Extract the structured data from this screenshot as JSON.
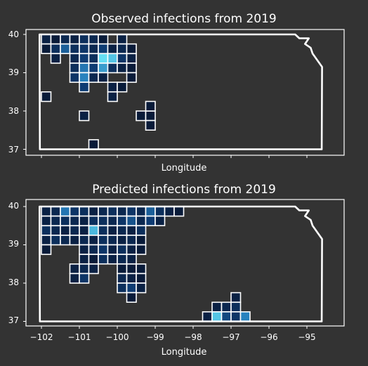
{
  "chart_data": [
    {
      "type": "heatmap",
      "title": "Observed infections from 2019",
      "xlabel": "Longitude",
      "ylabel": "",
      "xlim": [
        -102.3,
        -94.3
      ],
      "ylim": [
        36.85,
        40.15
      ],
      "xticks": [],
      "yticks": [
        "37",
        "38",
        "39",
        "40"
      ],
      "grid": false,
      "legend": "none",
      "cell_size_deg": 0.25,
      "cells": [
        [
          -101.875,
          39.875,
          0.1
        ],
        [
          -101.625,
          39.875,
          0.05
        ],
        [
          -101.375,
          39.875,
          0.15
        ],
        [
          -101.125,
          39.875,
          0.1
        ],
        [
          -100.875,
          39.875,
          0.2
        ],
        [
          -100.625,
          39.875,
          0.15
        ],
        [
          -100.375,
          39.875,
          0.05
        ],
        [
          -99.875,
          39.875,
          0.1
        ],
        [
          -101.875,
          39.625,
          0.05
        ],
        [
          -101.625,
          39.625,
          0.2
        ],
        [
          -101.375,
          39.625,
          0.45
        ],
        [
          -101.125,
          39.625,
          0.2
        ],
        [
          -100.875,
          39.625,
          0.25
        ],
        [
          -100.625,
          39.625,
          0.15
        ],
        [
          -100.375,
          39.625,
          0.3
        ],
        [
          -100.125,
          39.625,
          0.1
        ],
        [
          -99.875,
          39.625,
          0.15
        ],
        [
          -99.625,
          39.625,
          0.05
        ],
        [
          -101.625,
          39.375,
          0.1
        ],
        [
          -101.125,
          39.375,
          0.15
        ],
        [
          -100.875,
          39.375,
          0.3
        ],
        [
          -100.625,
          39.375,
          0.2
        ],
        [
          -100.375,
          39.375,
          0.95
        ],
        [
          -100.125,
          39.375,
          0.85
        ],
        [
          -99.875,
          39.375,
          0.25
        ],
        [
          -99.625,
          39.375,
          0.1
        ],
        [
          -101.125,
          39.125,
          0.2
        ],
        [
          -100.875,
          39.125,
          0.55
        ],
        [
          -100.625,
          39.125,
          0.3
        ],
        [
          -100.375,
          39.125,
          0.7
        ],
        [
          -100.125,
          39.125,
          0.2
        ],
        [
          -99.875,
          39.125,
          0.1
        ],
        [
          -99.625,
          39.125,
          0.05
        ],
        [
          -101.125,
          38.875,
          0.25
        ],
        [
          -100.875,
          38.875,
          0.6
        ],
        [
          -100.625,
          38.875,
          0.15
        ],
        [
          -100.375,
          38.875,
          0.1
        ],
        [
          -99.625,
          38.875,
          0.05
        ],
        [
          -100.875,
          38.625,
          0.3
        ],
        [
          -100.125,
          38.625,
          0.1
        ],
        [
          -99.875,
          38.625,
          0.05
        ],
        [
          -101.875,
          38.375,
          0.05
        ],
        [
          -100.125,
          38.375,
          0.1
        ],
        [
          -100.875,
          37.875,
          0.1
        ],
        [
          -99.375,
          37.875,
          0.05
        ],
        [
          -99.125,
          37.875,
          0.05
        ],
        [
          -99.125,
          38.125,
          0.05
        ],
        [
          -99.125,
          37.625,
          0.05
        ],
        [
          -100.625,
          37.125,
          0.05
        ]
      ]
    },
    {
      "type": "heatmap",
      "title": "Predicted infections from 2019",
      "xlabel": "Longitude",
      "ylabel": "",
      "xlim": [
        -102.3,
        -94.3
      ],
      "ylim": [
        36.85,
        40.15
      ],
      "xticks": [
        "−102",
        "−101",
        "−100",
        "−99",
        "−98",
        "−97",
        "−96",
        "−95"
      ],
      "yticks": [
        "37",
        "38",
        "39",
        "40"
      ],
      "grid": false,
      "legend": "none",
      "cell_size_deg": 0.25,
      "cells": [
        [
          -101.875,
          39.875,
          0.1
        ],
        [
          -101.625,
          39.875,
          0.15
        ],
        [
          -101.375,
          39.875,
          0.55
        ],
        [
          -101.125,
          39.875,
          0.25
        ],
        [
          -100.875,
          39.875,
          0.2
        ],
        [
          -100.625,
          39.875,
          0.1
        ],
        [
          -100.375,
          39.875,
          0.15
        ],
        [
          -100.125,
          39.875,
          0.2
        ],
        [
          -99.875,
          39.875,
          0.15
        ],
        [
          -99.625,
          39.875,
          0.25
        ],
        [
          -99.375,
          39.875,
          0.15
        ],
        [
          -99.125,
          39.875,
          0.45
        ],
        [
          -98.875,
          39.875,
          0.2
        ],
        [
          -98.625,
          39.875,
          0.1
        ],
        [
          -98.375,
          39.875,
          0.05
        ],
        [
          -101.875,
          39.625,
          0.1
        ],
        [
          -101.625,
          39.625,
          0.15
        ],
        [
          -101.375,
          39.625,
          0.2
        ],
        [
          -101.125,
          39.625,
          0.15
        ],
        [
          -100.875,
          39.625,
          0.1
        ],
        [
          -100.625,
          39.625,
          0.2
        ],
        [
          -100.375,
          39.625,
          0.2
        ],
        [
          -100.125,
          39.625,
          0.15
        ],
        [
          -99.875,
          39.625,
          0.25
        ],
        [
          -99.625,
          39.625,
          0.4
        ],
        [
          -99.375,
          39.625,
          0.15
        ],
        [
          -99.125,
          39.625,
          0.3
        ],
        [
          -98.875,
          39.625,
          0.1
        ],
        [
          -101.875,
          39.375,
          0.2
        ],
        [
          -101.625,
          39.375,
          0.15
        ],
        [
          -101.375,
          39.375,
          0.1
        ],
        [
          -101.125,
          39.375,
          0.15
        ],
        [
          -100.875,
          39.375,
          0.1
        ],
        [
          -100.625,
          39.375,
          0.8
        ],
        [
          -100.375,
          39.375,
          0.2
        ],
        [
          -100.125,
          39.375,
          0.1
        ],
        [
          -99.875,
          39.375,
          0.15
        ],
        [
          -99.625,
          39.375,
          0.1
        ],
        [
          -99.375,
          39.375,
          0.2
        ],
        [
          -101.875,
          39.125,
          0.1
        ],
        [
          -101.625,
          39.125,
          0.2
        ],
        [
          -101.375,
          39.125,
          0.15
        ],
        [
          -101.125,
          39.125,
          0.1
        ],
        [
          -100.875,
          39.125,
          0.15
        ],
        [
          -100.625,
          39.125,
          0.1
        ],
        [
          -100.375,
          39.125,
          0.2
        ],
        [
          -100.125,
          39.125,
          0.15
        ],
        [
          -99.875,
          39.125,
          0.1
        ],
        [
          -99.625,
          39.125,
          0.15
        ],
        [
          -99.375,
          39.125,
          0.05
        ],
        [
          -101.875,
          38.875,
          0.05
        ],
        [
          -100.875,
          38.875,
          0.1
        ],
        [
          -100.625,
          38.875,
          0.15
        ],
        [
          -100.375,
          38.875,
          0.25
        ],
        [
          -100.125,
          38.875,
          0.1
        ],
        [
          -99.875,
          38.875,
          0.2
        ],
        [
          -99.625,
          38.875,
          0.1
        ],
        [
          -99.375,
          38.875,
          0.05
        ],
        [
          -100.875,
          38.625,
          0.1
        ],
        [
          -100.625,
          38.625,
          0.05
        ],
        [
          -100.375,
          38.625,
          0.2
        ],
        [
          -100.125,
          38.625,
          0.1
        ],
        [
          -99.875,
          38.625,
          0.15
        ],
        [
          -99.625,
          38.625,
          0.1
        ],
        [
          -101.125,
          38.375,
          0.1
        ],
        [
          -100.875,
          38.375,
          0.15
        ],
        [
          -100.625,
          38.375,
          0.1
        ],
        [
          -99.875,
          38.375,
          0.05
        ],
        [
          -99.625,
          38.375,
          0.05
        ],
        [
          -99.375,
          38.375,
          0.05
        ],
        [
          -101.125,
          38.125,
          0.1
        ],
        [
          -100.875,
          38.125,
          0.25
        ],
        [
          -99.875,
          38.125,
          0.15
        ],
        [
          -99.625,
          38.125,
          0.1
        ],
        [
          -99.375,
          38.125,
          0.05
        ],
        [
          -99.875,
          37.875,
          0.2
        ],
        [
          -99.625,
          37.875,
          0.3
        ],
        [
          -99.375,
          37.875,
          0.1
        ],
        [
          -99.625,
          37.625,
          0.05
        ],
        [
          -97.375,
          37.375,
          0.1
        ],
        [
          -97.125,
          37.375,
          0.15
        ],
        [
          -96.875,
          37.375,
          0.2
        ],
        [
          -96.875,
          37.625,
          0.1
        ],
        [
          -97.625,
          37.125,
          0.1
        ],
        [
          -97.375,
          37.125,
          0.85
        ],
        [
          -97.125,
          37.125,
          0.35
        ],
        [
          -96.875,
          37.125,
          0.25
        ],
        [
          -96.625,
          37.125,
          0.6
        ]
      ]
    }
  ]
}
